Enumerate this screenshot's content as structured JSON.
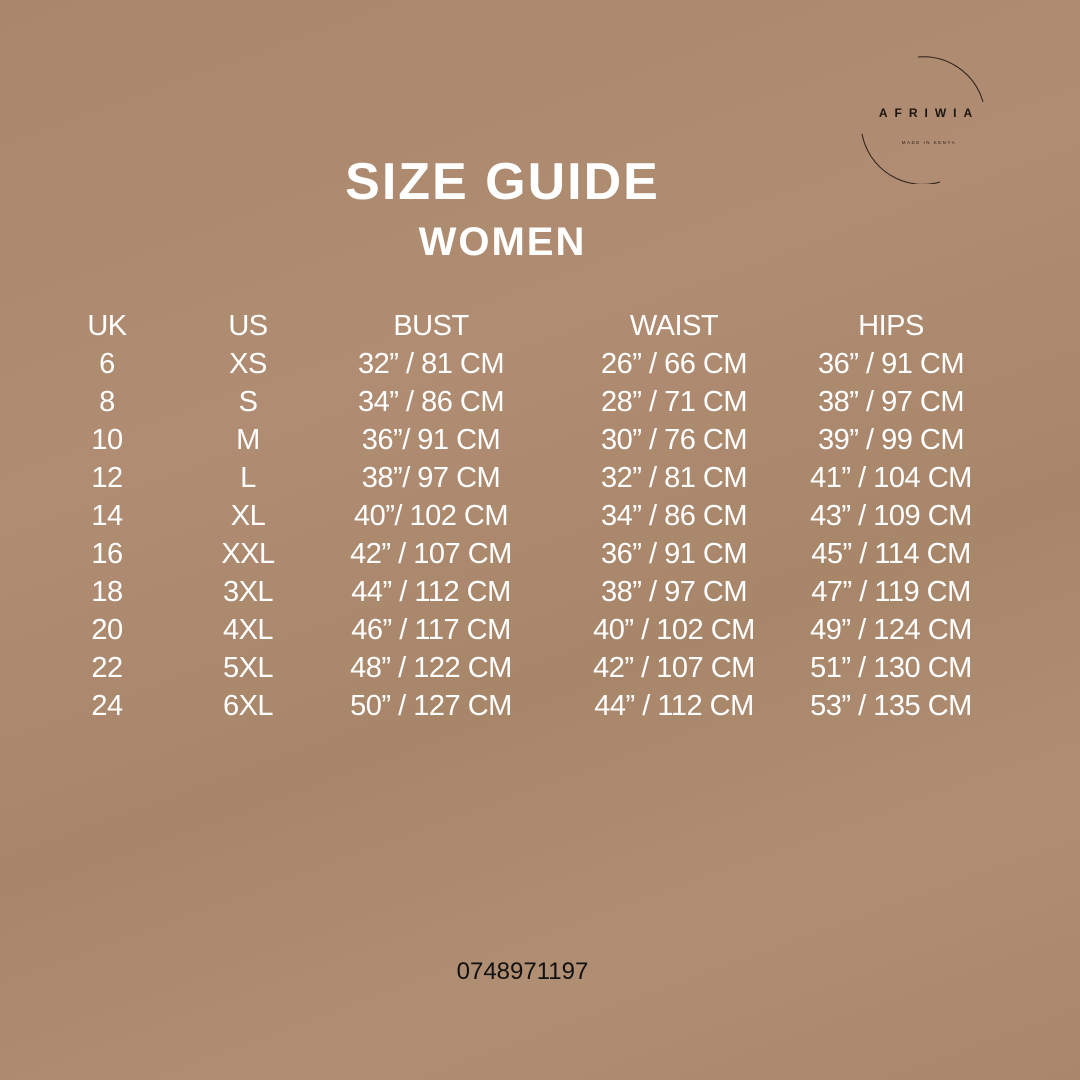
{
  "logo": {
    "brand": "AFRIWIA",
    "tagline": "MADE IN KENYA"
  },
  "title": "SIZE GUIDE",
  "subtitle": "WOMEN",
  "table": {
    "headers": [
      "UK",
      "US",
      "BUST",
      "WAIST",
      "HIPS"
    ],
    "rows": [
      [
        "6",
        "XS",
        "32” / 81 CM",
        "26” / 66 CM",
        "36” / 91 CM"
      ],
      [
        "8",
        "S",
        "34” / 86 CM",
        "28” / 71 CM",
        "38” / 97 CM"
      ],
      [
        "10",
        "M",
        "36”/ 91 CM",
        "30” / 76 CM",
        "39” / 99 CM"
      ],
      [
        "12",
        "L",
        "38”/ 97 CM",
        "32” / 81 CM",
        "41” / 104 CM"
      ],
      [
        "14",
        "XL",
        "40”/ 102 CM",
        "34” / 86 CM",
        "43” / 109 CM"
      ],
      [
        "16",
        "XXL",
        "42” / 107 CM",
        "36” / 91 CM",
        "45” / 114 CM"
      ],
      [
        "18",
        "3XL",
        "44” / 112 CM",
        "38” / 97 CM",
        "47” / 119 CM"
      ],
      [
        "20",
        "4XL",
        "46” / 117 CM",
        "40” / 102 CM",
        "49” / 124 CM"
      ],
      [
        "22",
        "5XL",
        "48” / 122 CM",
        "42” / 107 CM",
        "51” / 130 CM"
      ],
      [
        "24",
        "6XL",
        "50” / 127 CM",
        "44” / 112 CM",
        "53” / 135 CM"
      ]
    ]
  },
  "phone": "0748971197"
}
